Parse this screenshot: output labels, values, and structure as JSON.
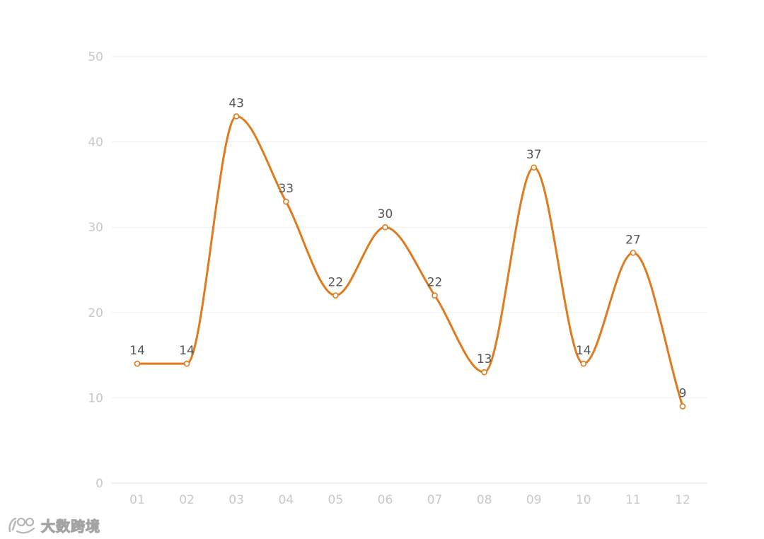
{
  "chart_data": {
    "type": "line",
    "categories": [
      "01",
      "02",
      "03",
      "04",
      "05",
      "06",
      "07",
      "08",
      "09",
      "10",
      "11",
      "12"
    ],
    "series": [
      {
        "values": [
          14,
          14,
          43,
          33,
          22,
          30,
          22,
          13,
          37,
          14,
          27,
          9
        ]
      }
    ],
    "ylim": [
      0,
      50
    ],
    "yticks": [
      0,
      10,
      20,
      30,
      40,
      50
    ],
    "grid": true,
    "smooth": true,
    "data_labels": true,
    "line_color": "#e07a1c",
    "grid_color": "#eeeeee",
    "tick_color": "#c8c8c8",
    "label_color": "#555555"
  },
  "watermark": {
    "text": "大数跨境",
    "icon": "logo-icon"
  }
}
